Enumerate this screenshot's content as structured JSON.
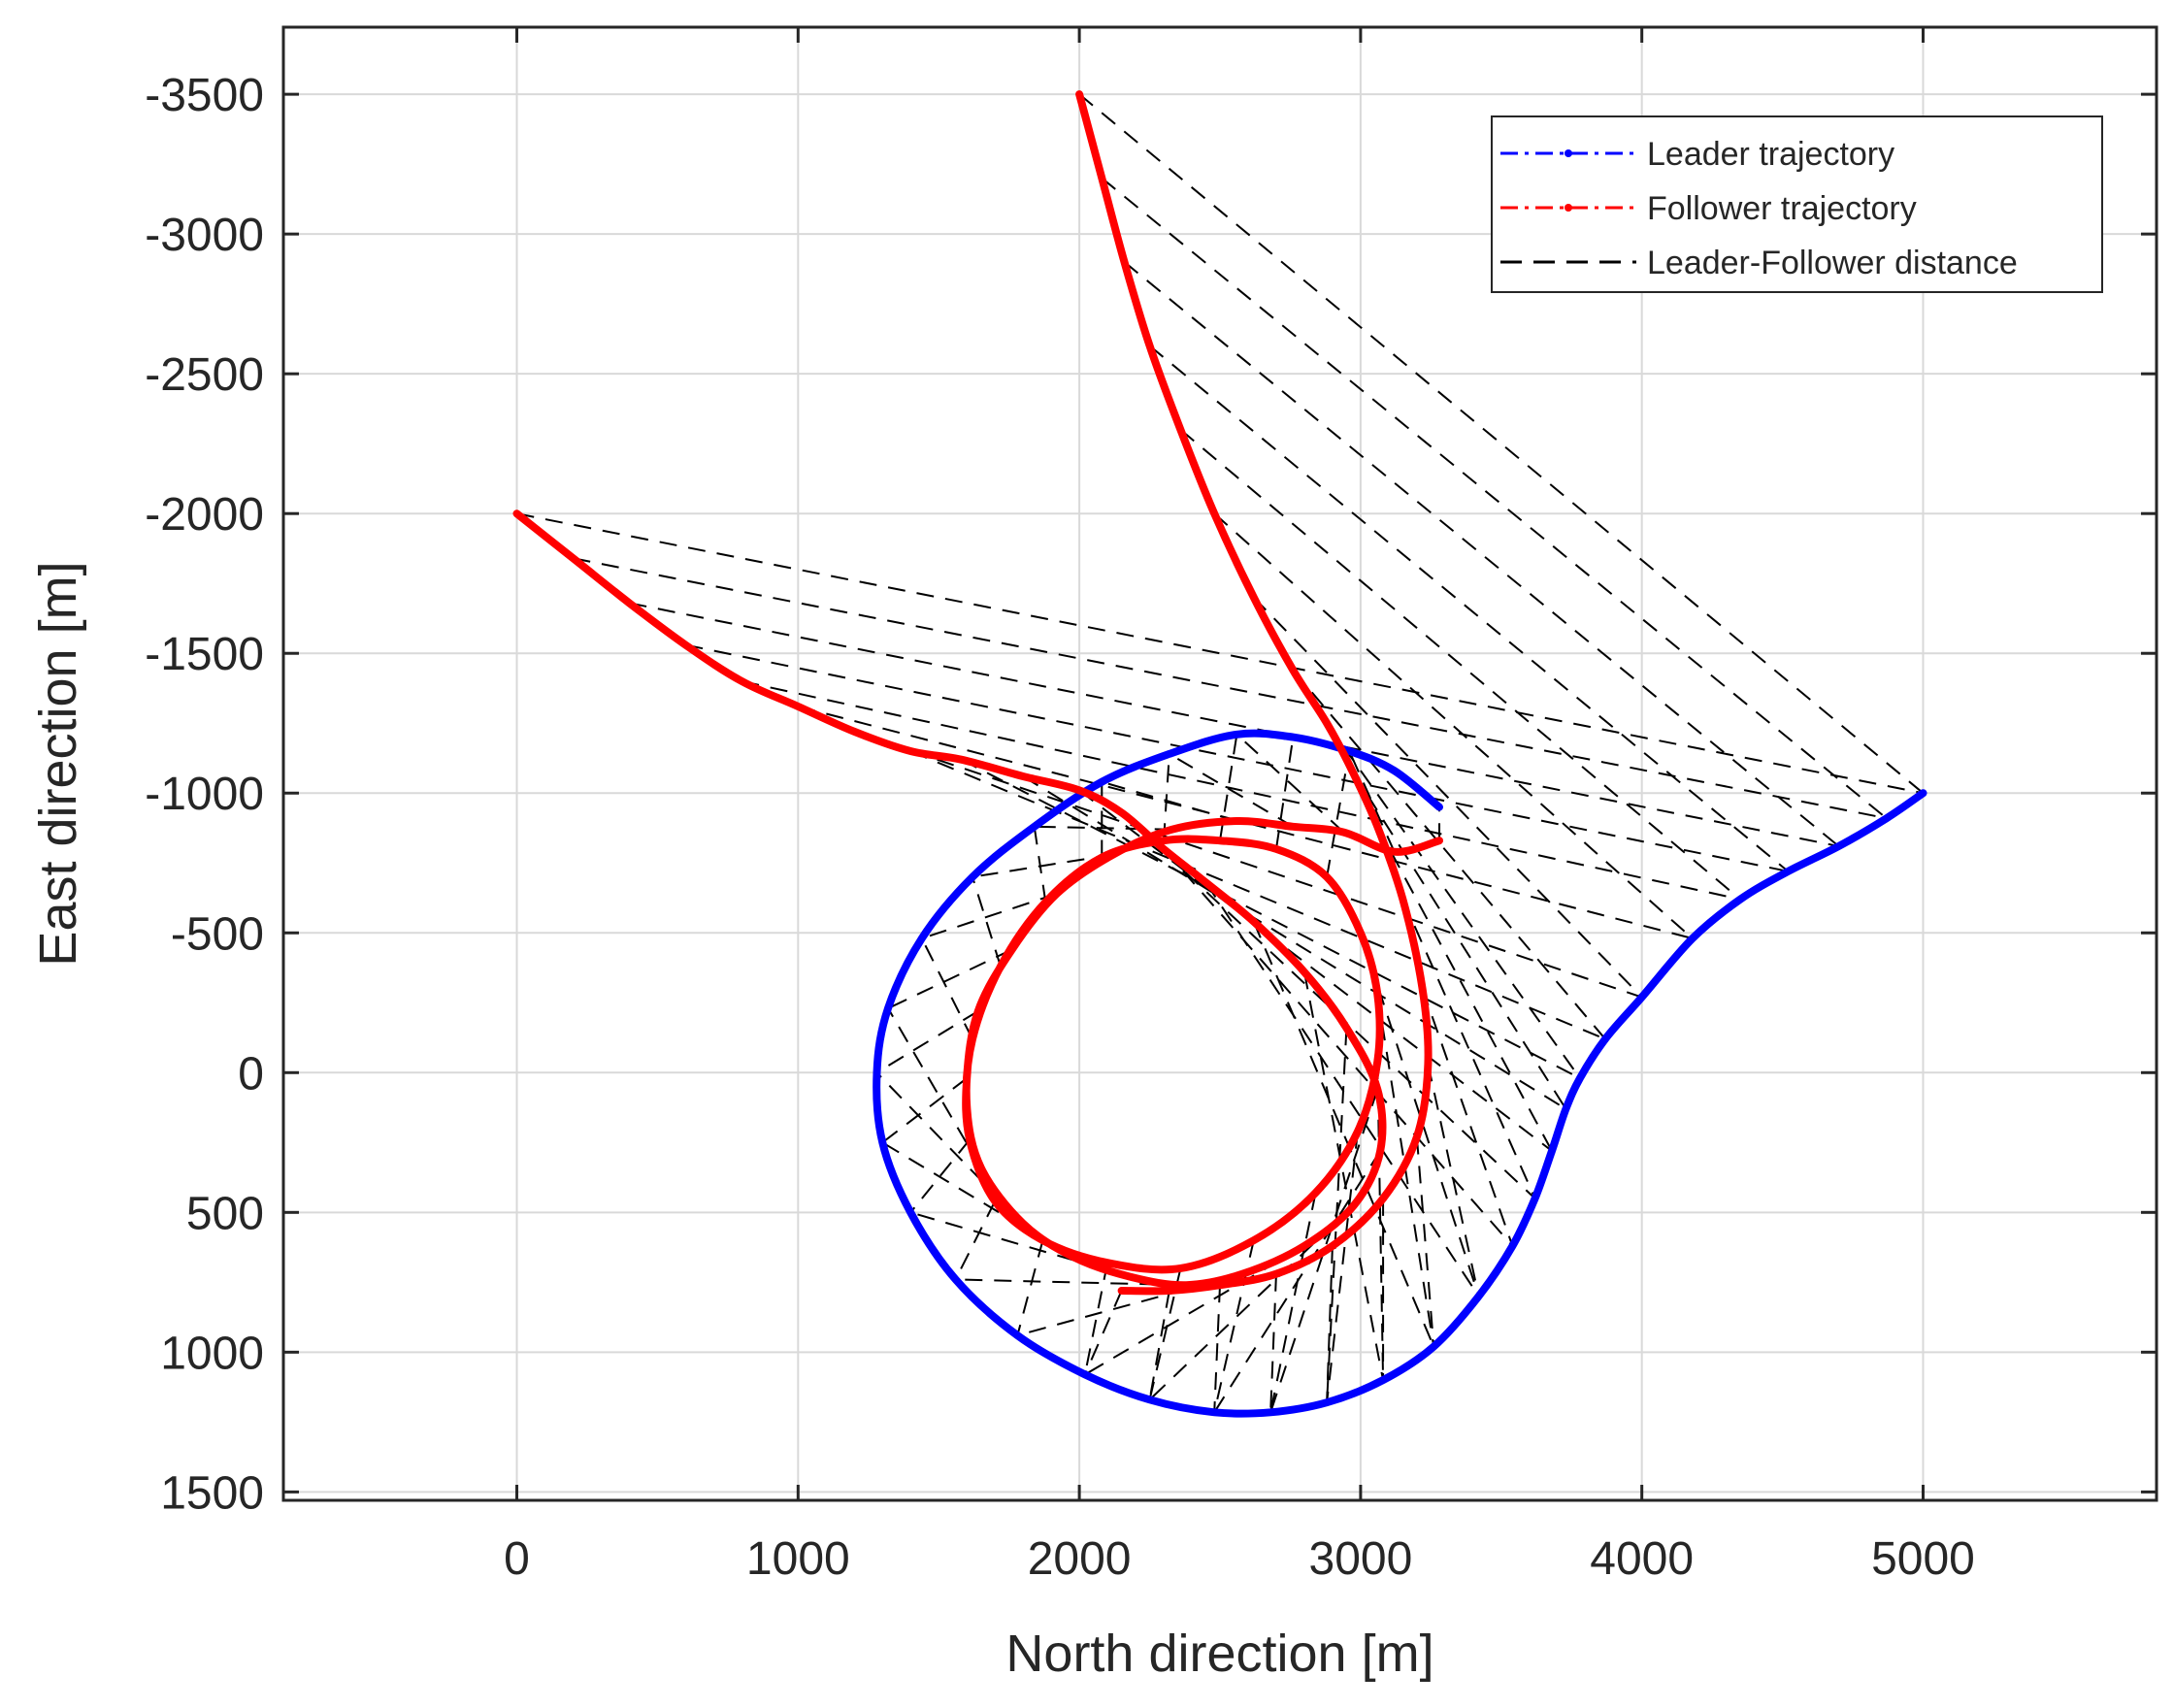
{
  "chart_data": {
    "type": "line",
    "xlabel": "North direction [m]",
    "ylabel": "East direction [m]",
    "xlim": [
      -830,
      5830
    ],
    "ylim": [
      -3740,
      1530
    ],
    "y_reversed": true,
    "grid": true,
    "xticks": [
      0,
      1000,
      2000,
      3000,
      4000,
      5000
    ],
    "xtick_labels": [
      "0",
      "1000",
      "2000",
      "3000",
      "4000",
      "5000"
    ],
    "yticks": [
      -3500,
      -3000,
      -2500,
      -2000,
      -1500,
      -1000,
      -500,
      0,
      500,
      1000,
      1500
    ],
    "ytick_labels": [
      "-3500",
      "-3000",
      "-2500",
      "-2000",
      "-1500",
      "-1000",
      "-500",
      "0",
      "500",
      "1000",
      "1500"
    ],
    "legend_position": "top-right",
    "colors": {
      "leader": "#0000ff",
      "follower": "#ff0000",
      "distance": "#000000",
      "grid": "#d9d9d9",
      "axes": "#262626"
    },
    "legend": [
      {
        "key": "leader",
        "label": "Leader trajectory",
        "style": "dash-dot"
      },
      {
        "key": "follower",
        "label": "Follower trajectory",
        "style": "dash-dot"
      },
      {
        "key": "distance",
        "label": "Leader-Follower distance",
        "style": "dashed"
      }
    ],
    "series": [
      {
        "name": "Leader trajectory",
        "key": "leader",
        "points": [
          [
            5000,
            -1000
          ],
          [
            4870,
            -910
          ],
          [
            4700,
            -810
          ],
          [
            4520,
            -720
          ],
          [
            4350,
            -620
          ],
          [
            4180,
            -480
          ],
          [
            4000,
            -270
          ],
          [
            3870,
            -120
          ],
          [
            3780,
            20
          ],
          [
            3730,
            130
          ],
          [
            3680,
            280
          ],
          [
            3620,
            450
          ],
          [
            3540,
            620
          ],
          [
            3420,
            800
          ],
          [
            3260,
            980
          ],
          [
            3080,
            1100
          ],
          [
            2880,
            1180
          ],
          [
            2680,
            1215
          ],
          [
            2480,
            1215
          ],
          [
            2250,
            1170
          ],
          [
            2020,
            1080
          ],
          [
            1780,
            940
          ],
          [
            1560,
            740
          ],
          [
            1400,
            500
          ],
          [
            1300,
            250
          ],
          [
            1280,
            0
          ],
          [
            1320,
            -230
          ],
          [
            1440,
            -480
          ],
          [
            1620,
            -700
          ],
          [
            1840,
            -880
          ],
          [
            2080,
            -1040
          ],
          [
            2320,
            -1140
          ],
          [
            2560,
            -1210
          ],
          [
            2760,
            -1200
          ],
          [
            2960,
            -1150
          ],
          [
            3120,
            -1080
          ],
          [
            3280,
            -950
          ]
        ]
      },
      {
        "name": "Follower trajectory (from 0, -2000)",
        "key": "follower",
        "points": [
          [
            0,
            -2000
          ],
          [
            200,
            -1840
          ],
          [
            400,
            -1680
          ],
          [
            600,
            -1530
          ],
          [
            800,
            -1400
          ],
          [
            1000,
            -1310
          ],
          [
            1200,
            -1220
          ],
          [
            1400,
            -1150
          ],
          [
            1580,
            -1120
          ],
          [
            1800,
            -1060
          ],
          [
            2000,
            -1010
          ],
          [
            2150,
            -930
          ],
          [
            2300,
            -800
          ],
          [
            2450,
            -680
          ],
          [
            2620,
            -540
          ],
          [
            2800,
            -360
          ],
          [
            2950,
            -160
          ],
          [
            3060,
            60
          ],
          [
            3070,
            280
          ],
          [
            2980,
            470
          ],
          [
            2800,
            620
          ],
          [
            2580,
            720
          ],
          [
            2380,
            760
          ],
          [
            2180,
            730
          ],
          [
            1980,
            660
          ],
          [
            1800,
            540
          ],
          [
            1650,
            340
          ],
          [
            1600,
            120
          ],
          [
            1620,
            -120
          ],
          [
            1720,
            -380
          ],
          [
            1880,
            -610
          ],
          [
            2080,
            -770
          ],
          [
            2300,
            -830
          ],
          [
            2500,
            -830
          ],
          [
            2700,
            -800
          ],
          [
            2880,
            -700
          ],
          [
            3000,
            -500
          ],
          [
            3060,
            -280
          ],
          [
            3060,
            -40
          ],
          [
            2990,
            210
          ],
          [
            2840,
            430
          ],
          [
            2620,
            600
          ],
          [
            2360,
            700
          ],
          [
            2100,
            680
          ],
          [
            1870,
            600
          ],
          [
            1700,
            460
          ],
          [
            1610,
            240
          ],
          [
            1600,
            20
          ],
          [
            1640,
            -220
          ],
          [
            1760,
            -440
          ],
          [
            1920,
            -640
          ],
          [
            2120,
            -780
          ],
          [
            2330,
            -870
          ],
          [
            2560,
            -900
          ],
          [
            2760,
            -880
          ],
          [
            2940,
            -860
          ],
          [
            3120,
            -790
          ],
          [
            3280,
            -830
          ]
        ]
      },
      {
        "name": "Follower trajectory (from 2000, -3500)",
        "key": "follower",
        "points": [
          [
            2000,
            -3500
          ],
          [
            2080,
            -3200
          ],
          [
            2160,
            -2900
          ],
          [
            2250,
            -2600
          ],
          [
            2360,
            -2300
          ],
          [
            2480,
            -2000
          ],
          [
            2620,
            -1700
          ],
          [
            2760,
            -1440
          ],
          [
            2880,
            -1250
          ],
          [
            2970,
            -1080
          ],
          [
            3060,
            -880
          ],
          [
            3150,
            -620
          ],
          [
            3220,
            -300
          ],
          [
            3240,
            -30
          ],
          [
            3200,
            230
          ],
          [
            3080,
            450
          ],
          [
            2900,
            620
          ],
          [
            2700,
            720
          ],
          [
            2500,
            760
          ],
          [
            2320,
            780
          ],
          [
            2150,
            780
          ]
        ]
      }
    ],
    "distance_pairs": [
      [
        [
          0,
          -2000
        ],
        [
          5000,
          -1000
        ]
      ],
      [
        [
          200,
          -1840
        ],
        [
          4870,
          -910
        ]
      ],
      [
        [
          400,
          -1680
        ],
        [
          4700,
          -810
        ]
      ],
      [
        [
          600,
          -1530
        ],
        [
          4520,
          -720
        ]
      ],
      [
        [
          800,
          -1400
        ],
        [
          4350,
          -620
        ]
      ],
      [
        [
          1000,
          -1310
        ],
        [
          4180,
          -480
        ]
      ],
      [
        [
          1200,
          -1220
        ],
        [
          4000,
          -270
        ]
      ],
      [
        [
          1400,
          -1150
        ],
        [
          3870,
          -120
        ]
      ],
      [
        [
          1580,
          -1120
        ],
        [
          3780,
          20
        ]
      ],
      [
        [
          1800,
          -1060
        ],
        [
          3730,
          130
        ]
      ],
      [
        [
          2000,
          -1010
        ],
        [
          3680,
          280
        ]
      ],
      [
        [
          2150,
          -930
        ],
        [
          3620,
          450
        ]
      ],
      [
        [
          2300,
          -800
        ],
        [
          3540,
          620
        ]
      ],
      [
        [
          2450,
          -680
        ],
        [
          3420,
          800
        ]
      ],
      [
        [
          2620,
          -540
        ],
        [
          3260,
          980
        ]
      ],
      [
        [
          2800,
          -360
        ],
        [
          3080,
          1100
        ]
      ],
      [
        [
          2950,
          -160
        ],
        [
          2880,
          1180
        ]
      ],
      [
        [
          3060,
          60
        ],
        [
          2680,
          1215
        ]
      ],
      [
        [
          3070,
          280
        ],
        [
          2480,
          1215
        ]
      ],
      [
        [
          2980,
          470
        ],
        [
          2250,
          1170
        ]
      ],
      [
        [
          2800,
          620
        ],
        [
          2020,
          1080
        ]
      ],
      [
        [
          2580,
          720
        ],
        [
          1780,
          940
        ]
      ],
      [
        [
          2380,
          760
        ],
        [
          1560,
          740
        ]
      ],
      [
        [
          2180,
          730
        ],
        [
          1400,
          500
        ]
      ],
      [
        [
          1980,
          660
        ],
        [
          1300,
          250
        ]
      ],
      [
        [
          1800,
          540
        ],
        [
          1280,
          0
        ]
      ],
      [
        [
          1650,
          340
        ],
        [
          1320,
          -230
        ]
      ],
      [
        [
          1620,
          -120
        ],
        [
          1440,
          -480
        ]
      ],
      [
        [
          1720,
          -380
        ],
        [
          1620,
          -700
        ]
      ],
      [
        [
          1880,
          -610
        ],
        [
          1840,
          -880
        ]
      ],
      [
        [
          2080,
          -770
        ],
        [
          2080,
          -1040
        ]
      ],
      [
        [
          2300,
          -830
        ],
        [
          2320,
          -1140
        ]
      ],
      [
        [
          2500,
          -830
        ],
        [
          2560,
          -1210
        ]
      ],
      [
        [
          2700,
          -800
        ],
        [
          2760,
          -1200
        ]
      ],
      [
        [
          2880,
          -700
        ],
        [
          2960,
          -1150
        ]
      ],
      [
        [
          2000,
          -3500
        ],
        [
          5000,
          -1000
        ]
      ],
      [
        [
          2080,
          -3200
        ],
        [
          4870,
          -910
        ]
      ],
      [
        [
          2160,
          -2900
        ],
        [
          4700,
          -810
        ]
      ],
      [
        [
          2250,
          -2600
        ],
        [
          4520,
          -720
        ]
      ],
      [
        [
          2360,
          -2300
        ],
        [
          4350,
          -620
        ]
      ],
      [
        [
          2480,
          -2000
        ],
        [
          4180,
          -480
        ]
      ],
      [
        [
          2620,
          -1700
        ],
        [
          4000,
          -270
        ]
      ],
      [
        [
          2760,
          -1440
        ],
        [
          3870,
          -120
        ]
      ],
      [
        [
          2880,
          -1250
        ],
        [
          3780,
          20
        ]
      ],
      [
        [
          2970,
          -1080
        ],
        [
          3730,
          130
        ]
      ],
      [
        [
          3060,
          -880
        ],
        [
          3680,
          280
        ]
      ],
      [
        [
          3150,
          -620
        ],
        [
          3620,
          450
        ]
      ],
      [
        [
          3220,
          -300
        ],
        [
          3540,
          620
        ]
      ],
      [
        [
          3240,
          -30
        ],
        [
          3420,
          800
        ]
      ],
      [
        [
          3200,
          230
        ],
        [
          3260,
          980
        ]
      ],
      [
        [
          3080,
          450
        ],
        [
          3080,
          1100
        ]
      ],
      [
        [
          2900,
          620
        ],
        [
          2880,
          1180
        ]
      ],
      [
        [
          2700,
          720
        ],
        [
          2680,
          1215
        ]
      ],
      [
        [
          2500,
          760
        ],
        [
          2480,
          1215
        ]
      ],
      [
        [
          2320,
          780
        ],
        [
          2250,
          1170
        ]
      ],
      [
        [
          2150,
          780
        ],
        [
          2020,
          1080
        ]
      ],
      [
        [
          1600,
          20
        ],
        [
          1300,
          250
        ]
      ],
      [
        [
          1610,
          240
        ],
        [
          1400,
          500
        ]
      ],
      [
        [
          1700,
          460
        ],
        [
          1560,
          740
        ]
      ],
      [
        [
          1870,
          600
        ],
        [
          1780,
          940
        ]
      ],
      [
        [
          2100,
          680
        ],
        [
          2020,
          1080
        ]
      ],
      [
        [
          2360,
          700
        ],
        [
          2250,
          1170
        ]
      ],
      [
        [
          2620,
          600
        ],
        [
          2480,
          1215
        ]
      ],
      [
        [
          2840,
          430
        ],
        [
          2680,
          1215
        ]
      ],
      [
        [
          2990,
          210
        ],
        [
          2880,
          1180
        ]
      ],
      [
        [
          3060,
          -40
        ],
        [
          3080,
          1100
        ]
      ],
      [
        [
          3060,
          -280
        ],
        [
          3260,
          980
        ]
      ],
      [
        [
          3000,
          -500
        ],
        [
          3420,
          800
        ]
      ],
      [
        [
          1640,
          -220
        ],
        [
          1280,
          0
        ]
      ],
      [
        [
          1760,
          -440
        ],
        [
          1320,
          -230
        ]
      ],
      [
        [
          1920,
          -640
        ],
        [
          1440,
          -480
        ]
      ],
      [
        [
          2120,
          -780
        ],
        [
          1620,
          -700
        ]
      ],
      [
        [
          2330,
          -870
        ],
        [
          1840,
          -880
        ]
      ],
      [
        [
          2560,
          -900
        ],
        [
          2080,
          -1040
        ]
      ],
      [
        [
          2760,
          -880
        ],
        [
          2320,
          -1140
        ]
      ],
      [
        [
          2940,
          -860
        ],
        [
          2560,
          -1210
        ]
      ],
      [
        [
          3120,
          -790
        ],
        [
          2960,
          -1150
        ]
      ],
      [
        [
          3280,
          -830
        ],
        [
          3280,
          -950
        ]
      ]
    ]
  }
}
